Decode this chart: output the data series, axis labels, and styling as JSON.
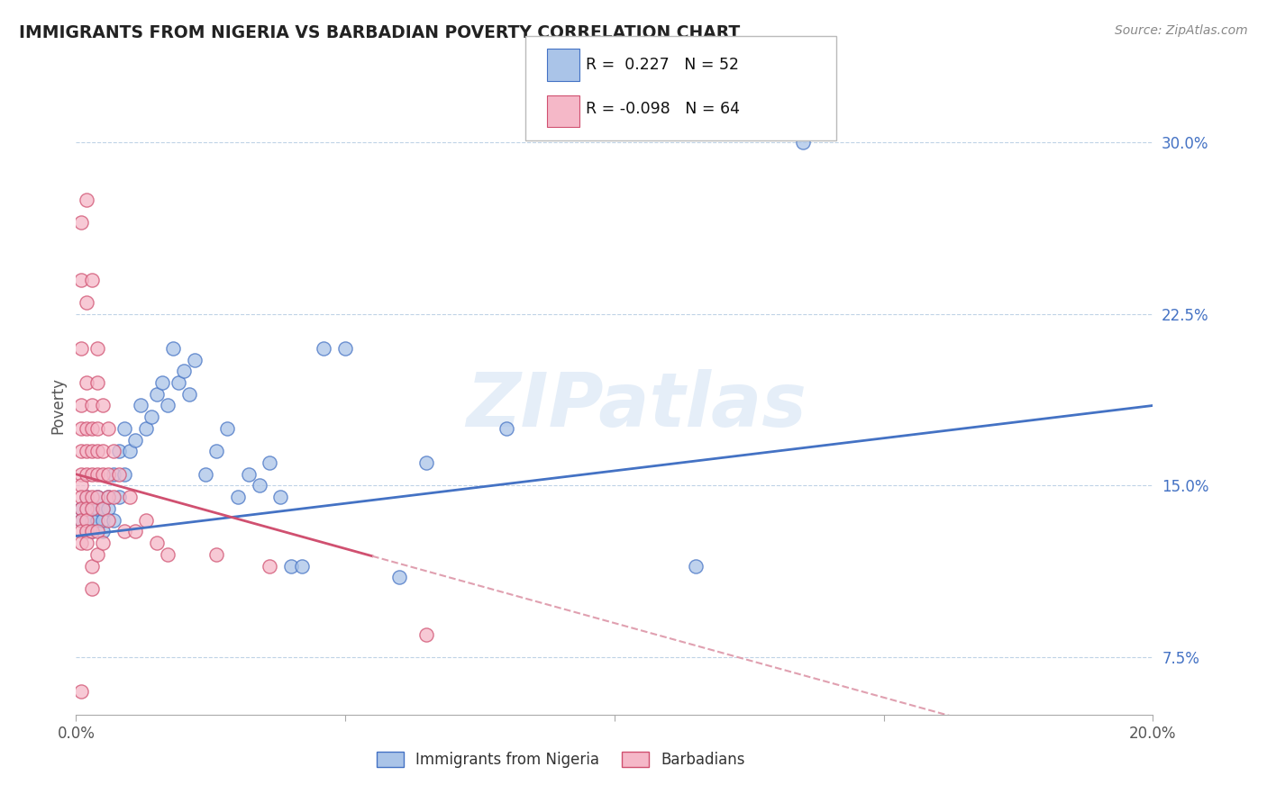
{
  "title": "IMMIGRANTS FROM NIGERIA VS BARBADIAN POVERTY CORRELATION CHART",
  "source_text": "Source: ZipAtlas.com",
  "ylabel": "Poverty",
  "watermark": "ZIPatlas",
  "r_nigeria": 0.227,
  "n_nigeria": 52,
  "r_barbadian": -0.098,
  "n_barbadian": 64,
  "xlim": [
    0.0,
    0.2
  ],
  "ylim": [
    0.05,
    0.32
  ],
  "nigeria_color": "#aac4e8",
  "barbadian_color": "#f5b8c8",
  "nigeria_line_color": "#4472c4",
  "barbadian_line_color": "#d05070",
  "trend_dash_color": "#e0a0b0",
  "legend_label_nigeria": "Immigrants from Nigeria",
  "legend_label_barbadian": "Barbadians",
  "ytick_color": "#4472c4",
  "nigeria_scatter": [
    [
      0.001,
      0.135
    ],
    [
      0.001,
      0.14
    ],
    [
      0.002,
      0.13
    ],
    [
      0.002,
      0.135
    ],
    [
      0.002,
      0.145
    ],
    [
      0.003,
      0.13
    ],
    [
      0.003,
      0.135
    ],
    [
      0.003,
      0.14
    ],
    [
      0.004,
      0.135
    ],
    [
      0.004,
      0.14
    ],
    [
      0.004,
      0.145
    ],
    [
      0.005,
      0.13
    ],
    [
      0.005,
      0.135
    ],
    [
      0.005,
      0.14
    ],
    [
      0.006,
      0.14
    ],
    [
      0.006,
      0.145
    ],
    [
      0.007,
      0.135
    ],
    [
      0.007,
      0.155
    ],
    [
      0.008,
      0.145
    ],
    [
      0.008,
      0.165
    ],
    [
      0.009,
      0.155
    ],
    [
      0.009,
      0.175
    ],
    [
      0.01,
      0.165
    ],
    [
      0.011,
      0.17
    ],
    [
      0.012,
      0.185
    ],
    [
      0.013,
      0.175
    ],
    [
      0.014,
      0.18
    ],
    [
      0.015,
      0.19
    ],
    [
      0.016,
      0.195
    ],
    [
      0.017,
      0.185
    ],
    [
      0.018,
      0.21
    ],
    [
      0.019,
      0.195
    ],
    [
      0.02,
      0.2
    ],
    [
      0.021,
      0.19
    ],
    [
      0.022,
      0.205
    ],
    [
      0.024,
      0.155
    ],
    [
      0.026,
      0.165
    ],
    [
      0.028,
      0.175
    ],
    [
      0.03,
      0.145
    ],
    [
      0.032,
      0.155
    ],
    [
      0.034,
      0.15
    ],
    [
      0.036,
      0.16
    ],
    [
      0.038,
      0.145
    ],
    [
      0.04,
      0.115
    ],
    [
      0.042,
      0.115
    ],
    [
      0.046,
      0.21
    ],
    [
      0.05,
      0.21
    ],
    [
      0.06,
      0.11
    ],
    [
      0.065,
      0.16
    ],
    [
      0.08,
      0.175
    ],
    [
      0.115,
      0.115
    ],
    [
      0.135,
      0.3
    ]
  ],
  "barbadian_scatter": [
    [
      0.001,
      0.265
    ],
    [
      0.001,
      0.24
    ],
    [
      0.001,
      0.21
    ],
    [
      0.001,
      0.185
    ],
    [
      0.001,
      0.175
    ],
    [
      0.001,
      0.165
    ],
    [
      0.001,
      0.155
    ],
    [
      0.001,
      0.15
    ],
    [
      0.001,
      0.145
    ],
    [
      0.001,
      0.14
    ],
    [
      0.001,
      0.135
    ],
    [
      0.001,
      0.13
    ],
    [
      0.001,
      0.125
    ],
    [
      0.001,
      0.06
    ],
    [
      0.002,
      0.275
    ],
    [
      0.002,
      0.23
    ],
    [
      0.002,
      0.195
    ],
    [
      0.002,
      0.175
    ],
    [
      0.002,
      0.165
    ],
    [
      0.002,
      0.155
    ],
    [
      0.002,
      0.145
    ],
    [
      0.002,
      0.14
    ],
    [
      0.002,
      0.135
    ],
    [
      0.002,
      0.13
    ],
    [
      0.002,
      0.125
    ],
    [
      0.003,
      0.24
    ],
    [
      0.003,
      0.185
    ],
    [
      0.003,
      0.175
    ],
    [
      0.003,
      0.165
    ],
    [
      0.003,
      0.155
    ],
    [
      0.003,
      0.145
    ],
    [
      0.003,
      0.14
    ],
    [
      0.003,
      0.13
    ],
    [
      0.003,
      0.115
    ],
    [
      0.003,
      0.105
    ],
    [
      0.004,
      0.21
    ],
    [
      0.004,
      0.195
    ],
    [
      0.004,
      0.175
    ],
    [
      0.004,
      0.165
    ],
    [
      0.004,
      0.155
    ],
    [
      0.004,
      0.145
    ],
    [
      0.004,
      0.13
    ],
    [
      0.004,
      0.12
    ],
    [
      0.005,
      0.185
    ],
    [
      0.005,
      0.165
    ],
    [
      0.005,
      0.155
    ],
    [
      0.005,
      0.14
    ],
    [
      0.005,
      0.125
    ],
    [
      0.006,
      0.175
    ],
    [
      0.006,
      0.155
    ],
    [
      0.006,
      0.145
    ],
    [
      0.006,
      0.135
    ],
    [
      0.007,
      0.165
    ],
    [
      0.007,
      0.145
    ],
    [
      0.008,
      0.155
    ],
    [
      0.009,
      0.13
    ],
    [
      0.01,
      0.145
    ],
    [
      0.011,
      0.13
    ],
    [
      0.013,
      0.135
    ],
    [
      0.015,
      0.125
    ],
    [
      0.017,
      0.12
    ],
    [
      0.026,
      0.12
    ],
    [
      0.036,
      0.115
    ],
    [
      0.065,
      0.085
    ]
  ]
}
